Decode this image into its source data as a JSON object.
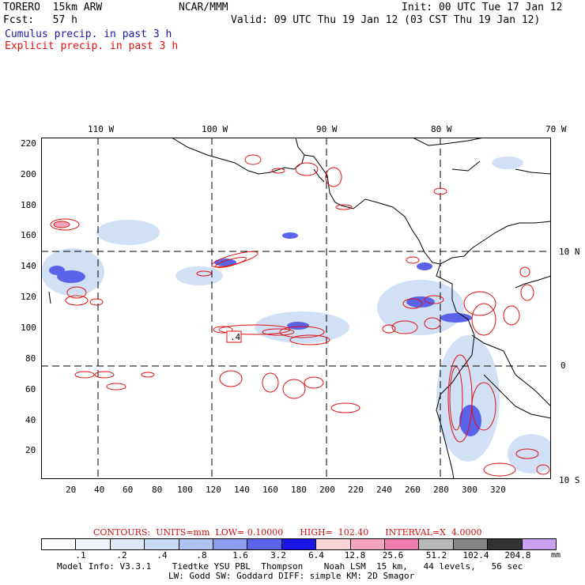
{
  "header": {
    "model": "TORERO  15km ARW",
    "org": "NCAR/MMM",
    "init": "Init: 00 UTC Tue 17 Jan 12",
    "fcst": "Fcst:   57 h",
    "valid": "Valid: 09 UTC Thu 19 Jan 12 (03 CST Thu 19 Jan 12)",
    "legend_cumulus": "Cumulus precip. in past 3 h",
    "legend_explicit": "Explicit precip. in past 3 h"
  },
  "colors": {
    "cumulus": "#1a1aa8",
    "explicit": "#e01010",
    "coast": "#000000",
    "grid": "#000000"
  },
  "map": {
    "lon_labels": [
      "110 W",
      "100 W",
      "90 W",
      "80 W",
      "70 W"
    ],
    "lat_labels": [
      "10 N",
      "0",
      "10 S"
    ],
    "y_ticks": [
      "220",
      "200",
      "180",
      "160",
      "140",
      "120",
      "100",
      "80",
      "60",
      "40",
      "20"
    ],
    "x_ticks": [
      "20",
      "40",
      "60",
      "80",
      "100",
      "120",
      "140",
      "160",
      "180",
      "200",
      "220",
      "240",
      "260",
      "280",
      "300",
      "320"
    ],
    "box_label": ".4"
  },
  "contours_info": {
    "label": "CONTOURS:",
    "units": "UNITS=mm",
    "low": "LOW= 0.10000",
    "high": "HIGH=  102.40",
    "interval": "INTERVAL=X  4.0000"
  },
  "colorbar": {
    "colors": [
      "#ffffff",
      "#f2f4fb",
      "#dfe9f7",
      "#c9dbf4",
      "#b0c4f2",
      "#8c9cee",
      "#5a64ea",
      "#1a14e6",
      "#f9d3d6",
      "#f4a5be",
      "#ee7ab0",
      "#b8b8b8",
      "#868686",
      "#333333",
      "#caa0f2"
    ],
    "labels": [
      ".1",
      ".2",
      ".4",
      ".8",
      "1.6",
      "3.2",
      "6.4",
      "12.8",
      "25.6",
      "51.2",
      "102.4",
      "204.8"
    ],
    "units": "mm"
  },
  "model_info": {
    "line1": "Model Info: V3.3.1    Tiedtke YSU PBL  Thompson    Noah LSM  15 km,   44 levels,   56 sec",
    "line2": "LW: Godd SW: Goddard DIFF: simple KM: 2D Smagor"
  }
}
